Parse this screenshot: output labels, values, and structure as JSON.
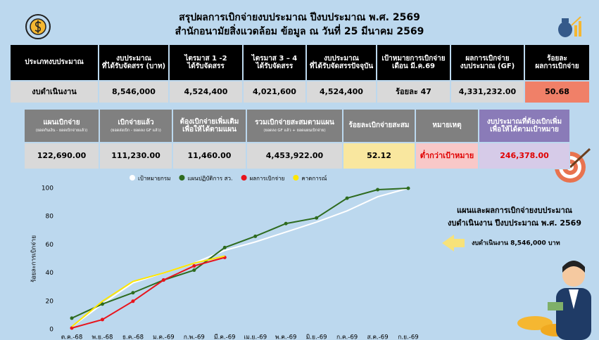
{
  "header": {
    "title_line1": "สรุปผลการเบิกจ่ายงบประมาณ ปีงบประมาณ พ.ศ. 2569",
    "title_line2": "สำนักอนามัยสิ่งแวดล้อม ข้อมูล ณ วันที่ 25 มีนาคม 2569"
  },
  "table1": {
    "headers": [
      [
        "ประเภทงบประมาณ"
      ],
      [
        "งบประมาณ",
        "ที่ได้รับจัดสรร (บาท)"
      ],
      [
        "ไตรมาส 1 -2",
        "ได้รับจัดสรร"
      ],
      [
        "ไตรมาส 3 – 4",
        "ได้รับจัดสรร"
      ],
      [
        "งบประมาณ",
        "ที่ได้รับจัดสรรปัจจุบัน"
      ],
      [
        "เป้าหมายการเบิกจ่าย",
        "เดือน มี.ค.69"
      ],
      [
        "ผลการเบิกจ่าย",
        "งบประมาณ (GF)"
      ],
      [
        "ร้อยละ",
        "ผลการเบิกจ่าย"
      ]
    ],
    "row": [
      "งบดำเนินงาน",
      "8,546,000",
      "4,524,400",
      "4,021,600",
      "4,524,400",
      "ร้อยละ 47",
      "4,331,232.00",
      "50.68"
    ]
  },
  "table2": {
    "headers": [
      {
        "lines": [
          "แผนเบิกจ่าย"
        ],
        "note": "(ยอดกันเงิน - ยอดเบิกจ่ายแล้ว)"
      },
      {
        "lines": [
          "เบิกจ่ายแล้ว"
        ],
        "note": "(ยอดส่งเบิก - ยอดลง GF แล้ว)"
      },
      {
        "lines": [
          "ต้องเบิกจ่ายเพิ่มเติม",
          "เพื่อให้ได้ตามแผน"
        ]
      },
      {
        "lines": [
          "รวมเบิกจ่ายสะสมตามแผน"
        ],
        "note": "(ยอดลง GF แล้ว + ยอดแผนเบิกจ่าย)"
      },
      {
        "lines": [
          "ร้อยละเบิกจ่ายสะสม"
        ]
      },
      {
        "lines": [
          "หมายเหตุ"
        ]
      },
      {
        "lines": [
          "งบประมาณที่ต้องเบิกเพิ่ม",
          "เพื่อให้ได้ตามเป้าหมาย"
        ]
      }
    ],
    "row": [
      "122,690.00",
      "111,230.00",
      "11,460.00",
      "4,453,922.00",
      "52.12",
      "ต่ำกว่าเป้าหมาย",
      "246,378.00"
    ]
  },
  "chart_data": {
    "type": "line",
    "y_label": "ร้อยละการเบิกจ่าย",
    "categories": [
      "ต.ค.-68",
      "พ.ย.-68",
      "ธ.ค.-68",
      "ม.ค.-69",
      "ก.พ.-69",
      "มี.ค.-69",
      "เม.ย.-69",
      "พ.ค.-69",
      "มิ.ย.-69",
      "ก.ค.-69",
      "ส.ค.-69",
      "ก.ย.-69"
    ],
    "series": [
      {
        "name": "เป้าหมายกรม",
        "color": "#ffffff",
        "markers": false,
        "values": [
          2,
          18,
          33,
          40,
          47,
          56,
          62,
          69,
          76,
          84,
          94,
          100
        ]
      },
      {
        "name": "แผนปฏิบัติการ สว.",
        "color": "#2e6b1f",
        "markers": true,
        "values": [
          8,
          18,
          26,
          35,
          42,
          58,
          66,
          75,
          79,
          93,
          99,
          100
        ]
      },
      {
        "name": "ผลการเบิกจ่าย",
        "color": "#e8141c",
        "markers": true,
        "values": [
          1,
          7,
          20,
          35,
          45,
          51,
          null,
          null,
          null,
          null,
          null,
          null
        ]
      },
      {
        "name": "คาดการณ์",
        "color": "#ffe600",
        "markers": false,
        "values": [
          2,
          20,
          34,
          40,
          47,
          52,
          null,
          null,
          null,
          null,
          null,
          null
        ]
      }
    ],
    "ylim": [
      0,
      100
    ],
    "yticks": [
      0,
      20,
      40,
      60,
      80,
      100
    ],
    "grid": false
  },
  "side_panel": {
    "title_line1": "แผนและผลการเบิกจ่ายงบประมาณ",
    "title_line2": "งบดำเนินงาน ปีงบประมาณ พ.ศ. 2569",
    "budget_note": "งบดำเนินงาน 8,546,000 บาท"
  }
}
